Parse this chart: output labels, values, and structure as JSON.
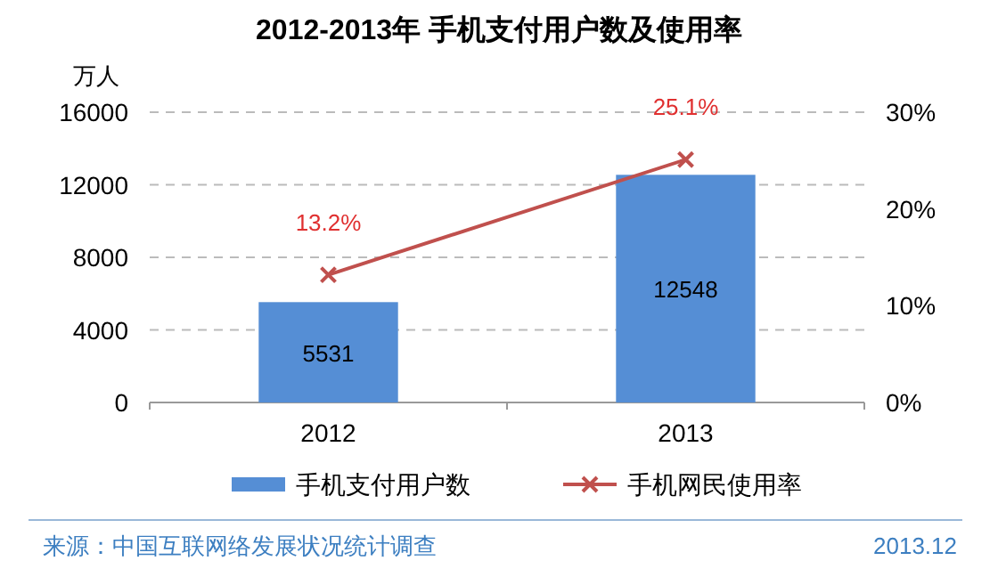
{
  "chart_data": {
    "type": "bar",
    "title": "2012-2013年 手机支付用户数及使用率",
    "ylabel": "万人",
    "categories": [
      "2012",
      "2013"
    ],
    "series": [
      {
        "name": "手机支付用户数",
        "color": "#558ed5",
        "values": [
          5531,
          12548
        ],
        "value_labels": [
          "5531",
          "12548"
        ]
      },
      {
        "name": "手机网民使用率",
        "type": "line",
        "axis": "y2",
        "color": "#c0504d",
        "marker": "cross",
        "values": [
          13.2,
          25.1
        ],
        "value_labels": [
          "13.2%",
          "25.1%"
        ]
      }
    ],
    "ylim": [
      0,
      16000
    ],
    "yticks": [
      0,
      4000,
      8000,
      12000,
      16000
    ],
    "y2lim": [
      0,
      30
    ],
    "y2ticks": [
      {
        "value": 0,
        "label": "0%"
      },
      {
        "value": 10,
        "label": "10%"
      },
      {
        "value": 20,
        "label": "20%"
      },
      {
        "value": 30,
        "label": "30%"
      }
    ],
    "grid": "y",
    "legend": "bottom",
    "annotations": [
      "来源：中国互联网络发展状况统计调查",
      "2013.12"
    ]
  }
}
